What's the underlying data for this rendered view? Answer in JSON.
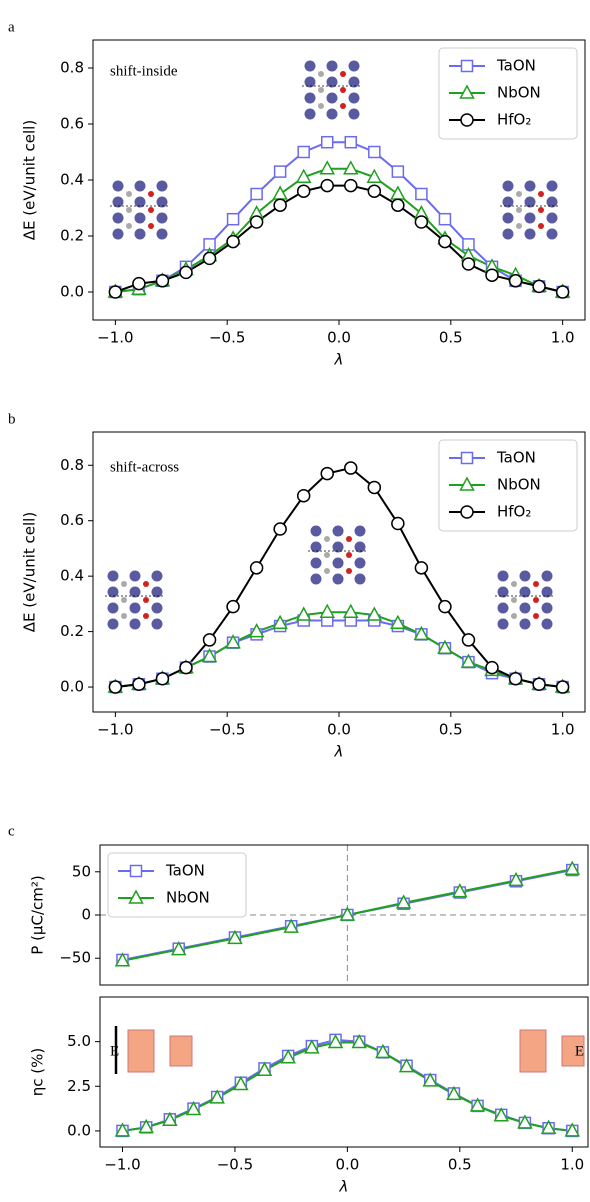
{
  "chart_data": [
    {
      "type": "line",
      "panel_label": "a",
      "annotation": "shift-inside",
      "ylabel": "ΔE (eV/unit cell)",
      "xlabel": "λ",
      "x": [
        -1,
        -0.8947,
        -0.7895,
        -0.6842,
        -0.5789,
        -0.4737,
        -0.3684,
        -0.2632,
        -0.1579,
        -0.0526,
        0.0526,
        0.1579,
        0.2632,
        0.3684,
        0.4737,
        0.5789,
        0.6842,
        0.7895,
        0.8947,
        1
      ],
      "series": [
        {
          "name": "TaON",
          "color": "#6b6bf0",
          "marker": "square",
          "values": [
            0,
            0.01,
            0.04,
            0.09,
            0.17,
            0.26,
            0.35,
            0.43,
            0.5,
            0.535,
            0.535,
            0.5,
            0.43,
            0.35,
            0.26,
            0.17,
            0.09,
            0.04,
            0.02,
            0
          ]
        },
        {
          "name": "NbON",
          "color": "#1fa01f",
          "marker": "triangle",
          "values": [
            0,
            0.01,
            0.04,
            0.08,
            0.13,
            0.19,
            0.28,
            0.35,
            0.41,
            0.44,
            0.44,
            0.41,
            0.35,
            0.28,
            0.19,
            0.13,
            0.09,
            0.06,
            0.02,
            0
          ]
        },
        {
          "name": "HfO₂",
          "color": "#000000",
          "marker": "circle",
          "values": [
            0,
            0.03,
            0.04,
            0.07,
            0.12,
            0.18,
            0.25,
            0.31,
            0.36,
            0.38,
            0.38,
            0.36,
            0.31,
            0.25,
            0.18,
            0.1,
            0.06,
            0.04,
            0.02,
            0
          ]
        }
      ],
      "xlim": [
        -1.1,
        1.1
      ],
      "ylim": [
        -0.1,
        0.9
      ],
      "xticks": [
        {
          "value": -1,
          "label": "−1.0"
        },
        {
          "value": -0.5,
          "label": "−0.5"
        },
        {
          "value": 0,
          "label": "0.0"
        },
        0.5,
        {
          "value": 1,
          "label": "1.0"
        }
      ],
      "yticks": [
        {
          "value": 0,
          "label": "0.0"
        },
        0.2,
        0.4,
        0.6,
        0.8
      ],
      "legend": "upper right"
    },
    {
      "type": "line",
      "panel_label": "b",
      "annotation": "shift-across",
      "ylabel": "ΔE (eV/unit cell)",
      "xlabel": "λ",
      "x": [
        -1,
        -0.8947,
        -0.7895,
        -0.6842,
        -0.5789,
        -0.4737,
        -0.3684,
        -0.2632,
        -0.1579,
        -0.0526,
        0.0526,
        0.1579,
        0.2632,
        0.3684,
        0.4737,
        0.5789,
        0.6842,
        0.7895,
        0.8947,
        1
      ],
      "series": [
        {
          "name": "TaON",
          "color": "#6b6bf0",
          "marker": "square",
          "values": [
            0,
            0.01,
            0.03,
            0.07,
            0.11,
            0.16,
            0.19,
            0.22,
            0.24,
            0.24,
            0.24,
            0.24,
            0.22,
            0.19,
            0.14,
            0.09,
            0.05,
            0.03,
            0.01,
            0
          ]
        },
        {
          "name": "NbON",
          "color": "#1fa01f",
          "marker": "triangle",
          "values": [
            0,
            0.01,
            0.03,
            0.07,
            0.11,
            0.16,
            0.2,
            0.23,
            0.26,
            0.27,
            0.27,
            0.26,
            0.23,
            0.19,
            0.14,
            0.09,
            0.06,
            0.03,
            0.01,
            0
          ]
        },
        {
          "name": "HfO₂",
          "color": "#000000",
          "marker": "circle",
          "values": [
            0,
            0.01,
            0.03,
            0.07,
            0.17,
            0.29,
            0.43,
            0.57,
            0.69,
            0.77,
            0.79,
            0.72,
            0.59,
            0.43,
            0.29,
            0.17,
            0.07,
            0.03,
            0.01,
            0
          ]
        }
      ],
      "xlim": [
        -1.1,
        1.1
      ],
      "ylim": [
        -0.09,
        0.92
      ],
      "xticks": [
        {
          "value": -1,
          "label": "−1.0"
        },
        {
          "value": -0.5,
          "label": "−0.5"
        },
        {
          "value": 0,
          "label": "0.0"
        },
        0.5,
        {
          "value": 1,
          "label": "1.0"
        }
      ],
      "yticks": [
        {
          "value": 0,
          "label": "0.0"
        },
        0.2,
        0.4,
        0.6,
        0.8
      ],
      "legend": "upper right"
    },
    {
      "type": "line",
      "panel_label": "c",
      "ylabel": "P (μC/cm²)",
      "x": [
        -1,
        -0.75,
        -0.5,
        -0.25,
        0,
        0.25,
        0.5,
        0.75,
        1
      ],
      "series": [
        {
          "name": "TaON",
          "color": "#6b6bf0",
          "marker": "square",
          "values": [
            -52,
            -39,
            -26,
            -13,
            0,
            13,
            26,
            39,
            52
          ]
        },
        {
          "name": "NbON",
          "color": "#1fa01f",
          "marker": "triangle",
          "values": [
            -53,
            -40,
            -27,
            -14,
            0,
            14,
            27,
            40,
            53
          ]
        }
      ],
      "xlim": [
        -1.1,
        1.07
      ],
      "ylim": [
        -81,
        81
      ],
      "yticks": [
        {
          "value": -50,
          "label": "−50"
        },
        0,
        50
      ],
      "zero_lines": true,
      "legend": "upper left"
    },
    {
      "type": "line",
      "ylabel": "ηc (%)",
      "xlabel": "λ",
      "annotations": [
        "E",
        "E"
      ],
      "x": [
        -1,
        -0.8947,
        -0.7895,
        -0.6842,
        -0.5789,
        -0.4737,
        -0.3684,
        -0.2632,
        -0.1579,
        -0.0526,
        0.0526,
        0.1579,
        0.2632,
        0.3684,
        0.4737,
        0.5789,
        0.6842,
        0.7895,
        0.8947,
        1
      ],
      "series": [
        {
          "name": "TaON",
          "color": "#6b6bf0",
          "marker": "square",
          "values": [
            0,
            0.2,
            0.65,
            1.25,
            1.9,
            2.7,
            3.5,
            4.2,
            4.75,
            5.1,
            5.0,
            4.4,
            3.65,
            2.85,
            2.1,
            1.4,
            0.9,
            0.45,
            0.15,
            0
          ]
        },
        {
          "name": "NbON",
          "color": "#1fa01f",
          "marker": "triangle",
          "values": [
            0,
            0.2,
            0.6,
            1.2,
            1.85,
            2.6,
            3.4,
            4.1,
            4.65,
            4.95,
            4.95,
            4.4,
            3.6,
            2.8,
            2.05,
            1.4,
            0.85,
            0.45,
            0.15,
            0
          ]
        }
      ],
      "xlim": [
        -1.1,
        1.07
      ],
      "ylim": [
        -0.9,
        7.5
      ],
      "xticks": [
        {
          "value": -1,
          "label": "−1.0"
        },
        {
          "value": -0.5,
          "label": "−0.5"
        },
        {
          "value": 0,
          "label": "0.0"
        },
        0.5,
        {
          "value": 1,
          "label": "1.0"
        }
      ],
      "yticks": [
        {
          "value": 0,
          "label": "0.0"
        },
        2.5,
        {
          "value": 5,
          "label": "5.0"
        }
      ]
    }
  ]
}
